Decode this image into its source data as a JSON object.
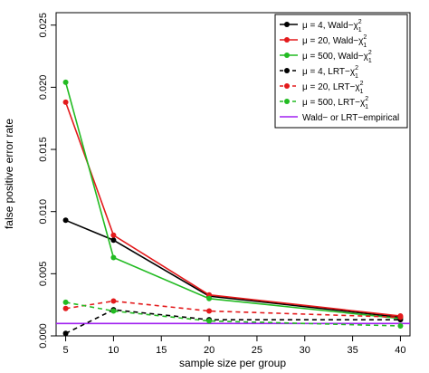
{
  "chart_data": {
    "type": "line",
    "title": "",
    "xlabel": "sample size per group",
    "ylabel": "false positive error rate",
    "xlim": [
      4,
      41
    ],
    "ylim": [
      0,
      0.026
    ],
    "x_ticks": [
      5,
      10,
      15,
      20,
      25,
      30,
      35,
      40
    ],
    "x_tick_labels": [
      "5",
      "10",
      "15",
      "20",
      "25",
      "30",
      "35",
      "40"
    ],
    "y_ticks": [
      0.0,
      0.005,
      0.01,
      0.015,
      0.02,
      0.025
    ],
    "y_tick_labels": [
      "0.000",
      "0.005",
      "0.010",
      "0.015",
      "0.020",
      "0.025"
    ],
    "grid": false,
    "legend_position": "top-right",
    "x": [
      5,
      10,
      20,
      40
    ],
    "series": [
      {
        "name": "μ = 4, Wald−χ",
        "sup": "2",
        "sub": "1",
        "color": "#000000",
        "dashed": false,
        "values": [
          0.0093,
          0.0077,
          0.0032,
          0.0015
        ]
      },
      {
        "name": "μ = 20, Wald−χ",
        "sup": "2",
        "sub": "1",
        "color": "#e31a1c",
        "dashed": false,
        "values": [
          0.0188,
          0.0081,
          0.0033,
          0.0016
        ]
      },
      {
        "name": "μ = 500, Wald−χ",
        "sup": "2",
        "sub": "1",
        "color": "#22bb22",
        "dashed": false,
        "values": [
          0.0204,
          0.0063,
          0.003,
          0.0014
        ]
      },
      {
        "name": "μ = 4, LRT−χ",
        "sup": "2",
        "sub": "1",
        "color": "#000000",
        "dashed": true,
        "values": [
          0.0002,
          0.0021,
          0.0013,
          0.0013
        ]
      },
      {
        "name": "μ = 20, LRT−χ",
        "sup": "2",
        "sub": "1",
        "color": "#e31a1c",
        "dashed": true,
        "values": [
          0.0022,
          0.0028,
          0.002,
          0.0015
        ]
      },
      {
        "name": "μ = 500, LRT−χ",
        "sup": "2",
        "sub": "1",
        "color": "#22bb22",
        "dashed": true,
        "values": [
          0.0027,
          0.002,
          0.0012,
          0.0008
        ]
      }
    ],
    "reference_line": {
      "name": "Wald− or LRT−empirical",
      "color": "#a020f0",
      "value": 0.001
    }
  }
}
